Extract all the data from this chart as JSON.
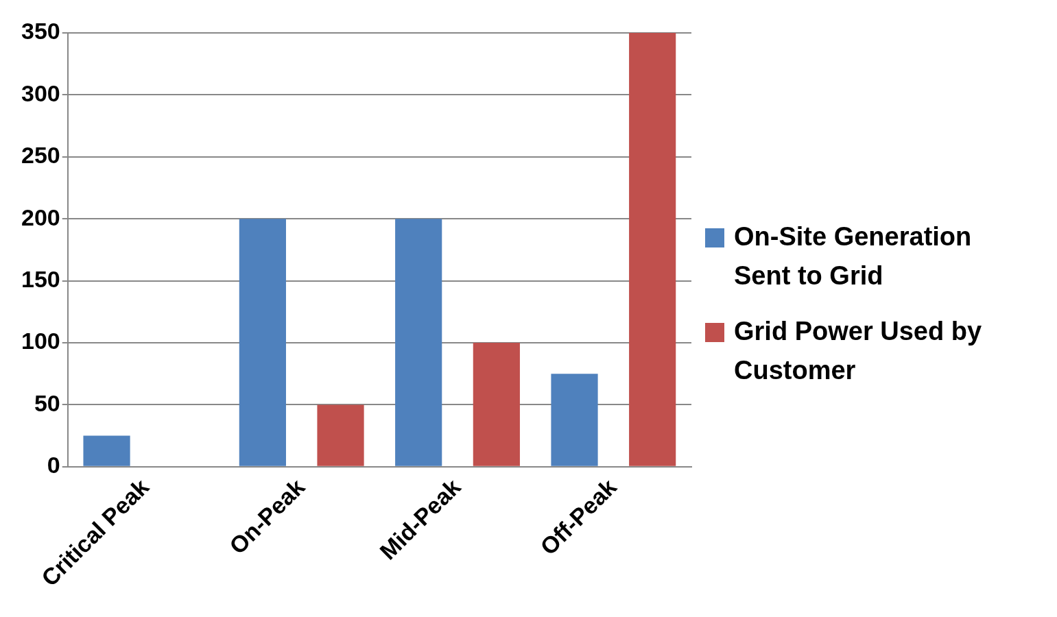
{
  "chart_data": {
    "type": "bar",
    "categories": [
      "Critical Peak",
      "On-Peak",
      "Mid-Peak",
      "Off-Peak"
    ],
    "series": [
      {
        "name": "On-Site Generation Sent to Grid",
        "color": "#4f81bd",
        "values": [
          25,
          200,
          200,
          75
        ]
      },
      {
        "name": "Grid Power Used by Customer",
        "color": "#c0504d",
        "values": [
          0,
          50,
          100,
          350
        ]
      }
    ],
    "ylim": [
      0,
      350
    ],
    "yticks": [
      0,
      50,
      100,
      150,
      200,
      250,
      300,
      350
    ],
    "grid": "y",
    "legend": "right"
  }
}
